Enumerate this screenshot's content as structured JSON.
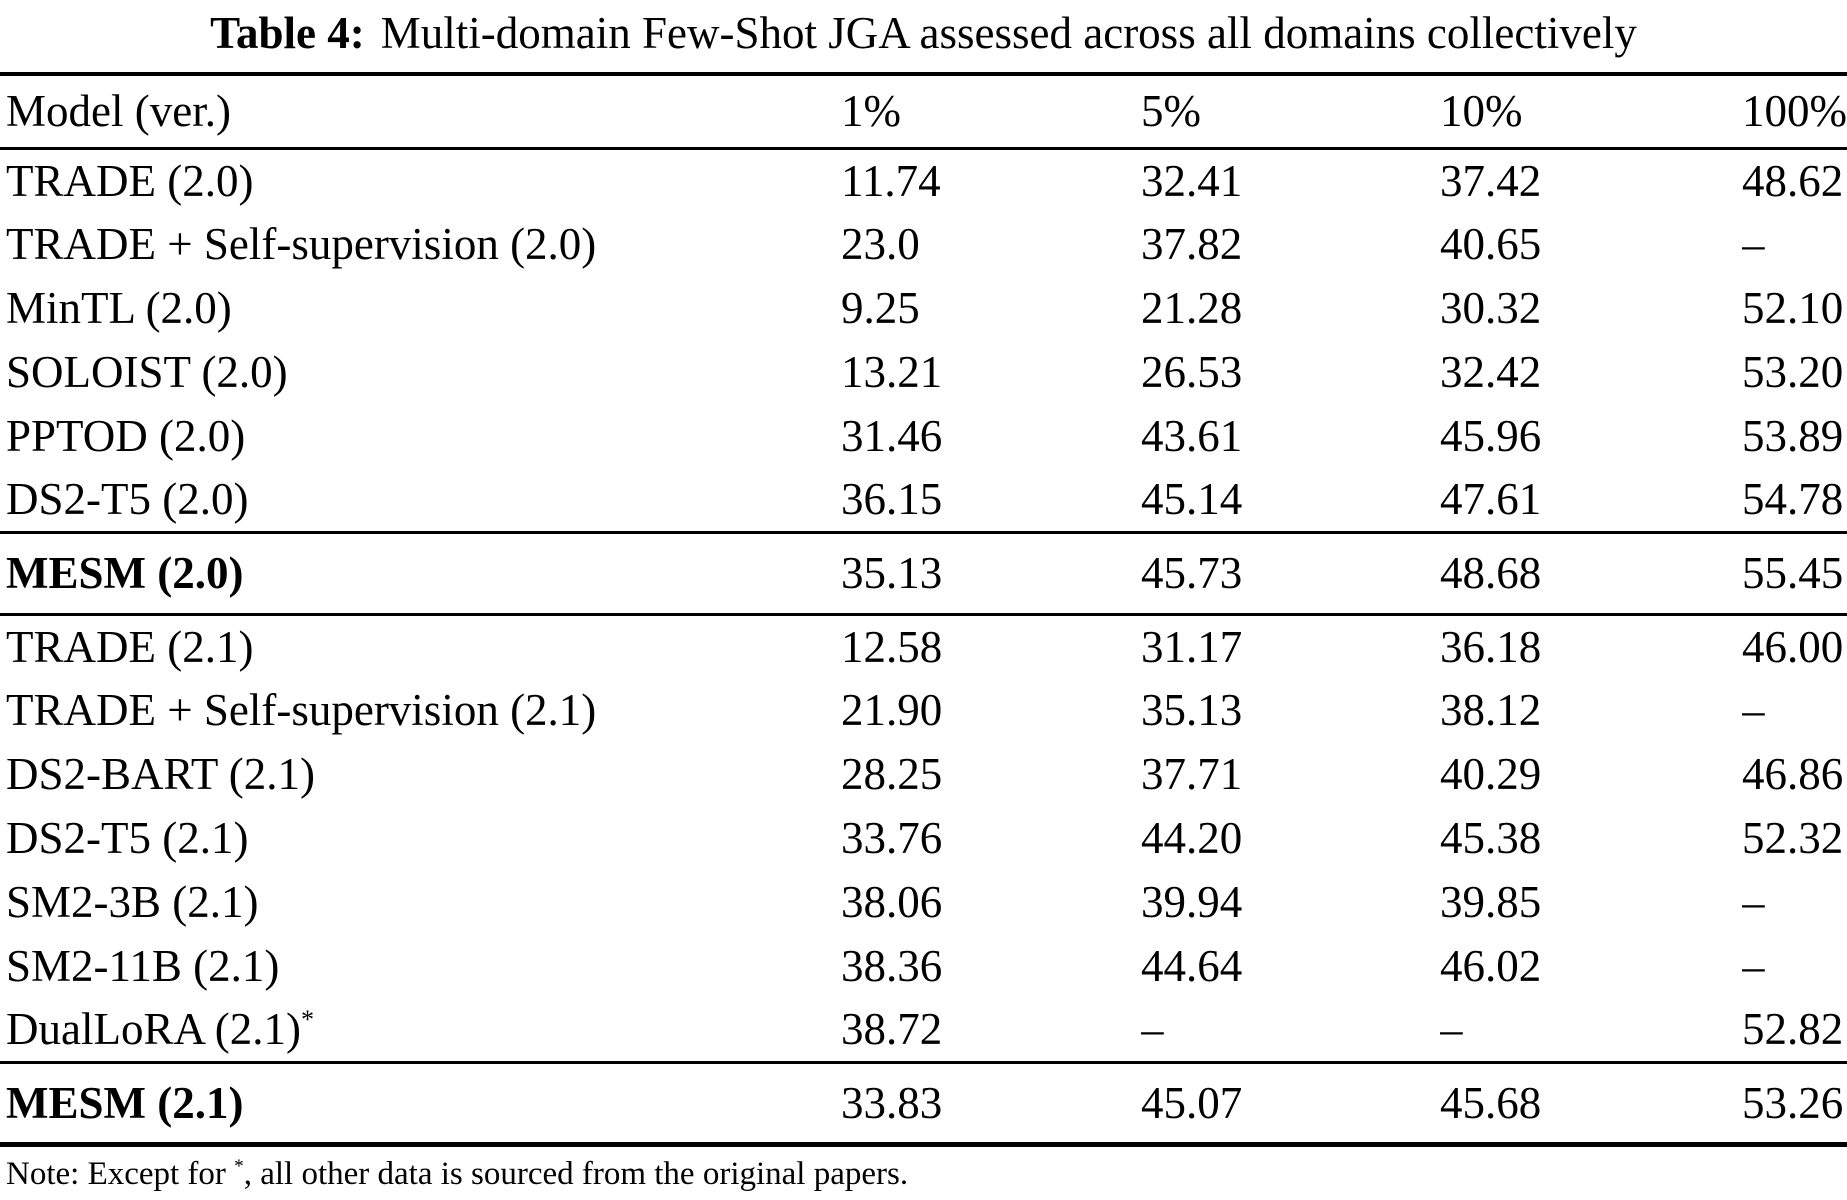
{
  "caption": {
    "label": "Table 4:",
    "text": "Multi-domain Few-Shot JGA assessed across all domains collectively"
  },
  "table": {
    "columns": [
      "Model (ver.)",
      "1%",
      "5%",
      "10%",
      "100%"
    ],
    "rows": [
      {
        "model": "TRADE (2.0)",
        "c1": "11.74",
        "c2": "32.41",
        "c3": "37.42",
        "c4": "48.62"
      },
      {
        "model": "TRADE + Self-supervision (2.0)",
        "c1": "23.0",
        "c2": "37.82",
        "c3": "40.65",
        "c4": "–"
      },
      {
        "model": "MinTL (2.0)",
        "c1": "9.25",
        "c2": "21.28",
        "c3": "30.32",
        "c4": "52.10"
      },
      {
        "model": "SOLOIST (2.0)",
        "c1": "13.21",
        "c2": "26.53",
        "c3": "32.42",
        "c4": "53.20"
      },
      {
        "model": "PPTOD (2.0)",
        "c1": "31.46",
        "c2": "43.61",
        "c3": "45.96",
        "c4": "53.89"
      },
      {
        "model": "DS2-T5 (2.0)",
        "c1": "36.15",
        "c2": "45.14",
        "c3": "47.61",
        "c4": "54.78"
      },
      {
        "model": "MESM (2.0)",
        "c1": "35.13",
        "c2": "45.73",
        "c3": "48.68",
        "c4": "55.45"
      },
      {
        "model": "TRADE (2.1)",
        "c1": "12.58",
        "c2": "31.17",
        "c3": "36.18",
        "c4": "46.00"
      },
      {
        "model": "TRADE + Self-supervision (2.1)",
        "c1": "21.90",
        "c2": "35.13",
        "c3": "38.12",
        "c4": "–"
      },
      {
        "model": "DS2-BART (2.1)",
        "c1": "28.25",
        "c2": "37.71",
        "c3": "40.29",
        "c4": "46.86"
      },
      {
        "model": "DS2-T5 (2.1)",
        "c1": "33.76",
        "c2": "44.20",
        "c3": "45.38",
        "c4": "52.32"
      },
      {
        "model": "SM2-3B (2.1)",
        "c1": "38.06",
        "c2": "39.94",
        "c3": "39.85",
        "c4": "–"
      },
      {
        "model": "SM2-11B (2.1)",
        "c1": "38.36",
        "c2": "44.64",
        "c3": "46.02",
        "c4": "–"
      },
      {
        "model": "DualLoRA (2.1)",
        "model_sup": "*",
        "c1": "38.72",
        "c2": "–",
        "c3": "–",
        "c4": "52.82"
      },
      {
        "model": "MESM (2.1)",
        "c1": "33.83",
        "c2": "45.07",
        "c3": "45.68",
        "c4": "53.26"
      }
    ]
  },
  "note": {
    "prefix": "Note: Except for ",
    "symbol": "*",
    "suffix": ", all other data is sourced from the original papers."
  }
}
